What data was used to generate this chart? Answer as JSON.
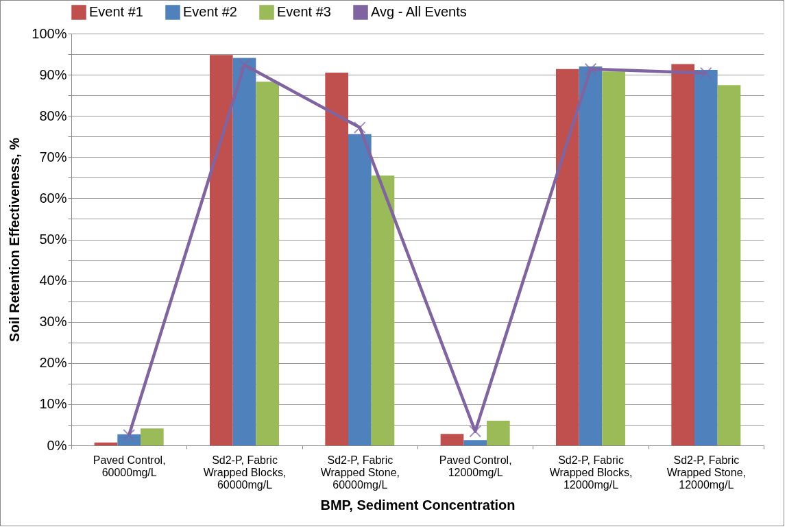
{
  "chart_data": {
    "type": "bar",
    "xlabel": "BMP, Sediment Concentration",
    "ylabel": "Soil Retention Effectiveness, %",
    "categories": [
      "Paved Control, 60000mg/L",
      "Sd2-P, Fabric Wrapped Blocks, 60000mg/L",
      "Sd2-P, Fabric Wrapped Stone, 60000mg/L",
      "Paved Control, 12000mg/L",
      "Sd2-P, Fabric Wrapped Blocks, 12000mg/L",
      "Sd2-P, Fabric Wrapped Stone, 12000mg/L"
    ],
    "series": [
      {
        "name": "Event #1",
        "color": "#c0504d",
        "values": [
          0.7,
          94.8,
          90.5,
          2.8,
          91.4,
          92.6
        ]
      },
      {
        "name": "Event #2",
        "color": "#4f81bd",
        "values": [
          2.7,
          94.1,
          75.6,
          1.3,
          92.0,
          91.2
        ]
      },
      {
        "name": "Event #3",
        "color": "#9bbb59",
        "values": [
          4.1,
          88.3,
          65.5,
          6.0,
          90.8,
          87.5
        ]
      },
      {
        "name": "Avg - All Events",
        "color": "#8064a2",
        "type": "line",
        "marker": "cross",
        "values": [
          2.5,
          92.4,
          77.2,
          3.4,
          91.4,
          90.4
        ]
      }
    ],
    "ylim": [
      0,
      100
    ],
    "yticks": [
      {
        "value": 0,
        "label": "0%"
      },
      {
        "value": 5,
        "label": null
      },
      {
        "value": 10,
        "label": "10%"
      },
      {
        "value": 15,
        "label": null
      },
      {
        "value": 20,
        "label": "20%"
      },
      {
        "value": 25,
        "label": null
      },
      {
        "value": 30,
        "label": "30%"
      },
      {
        "value": 35,
        "label": null
      },
      {
        "value": 40,
        "label": "40%"
      },
      {
        "value": 45,
        "label": null
      },
      {
        "value": 50,
        "label": "50%"
      },
      {
        "value": 55,
        "label": null
      },
      {
        "value": 60,
        "label": "60%"
      },
      {
        "value": 65,
        "label": null
      },
      {
        "value": 70,
        "label": "70%"
      },
      {
        "value": 75,
        "label": null
      },
      {
        "value": 80,
        "label": "80%"
      },
      {
        "value": 85,
        "label": null
      },
      {
        "value": 90,
        "label": "90%"
      },
      {
        "value": 95,
        "label": null
      },
      {
        "value": 100,
        "label": "100%"
      }
    ],
    "grid": true,
    "legend": "top"
  }
}
